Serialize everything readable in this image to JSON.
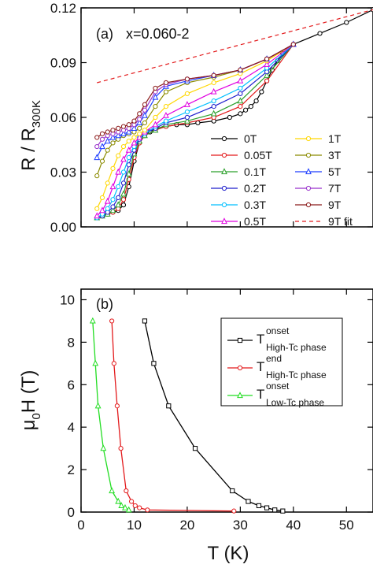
{
  "chart_data": [
    {
      "type": "line",
      "panel_label": "(a)",
      "title": "x=0.060-2",
      "ylabel": "R / R",
      "ylabel_sub": "300K",
      "xlim": [
        0,
        55
      ],
      "ylim": [
        0,
        0.12
      ],
      "yticks": [
        "0.00",
        "0.03",
        "0.06",
        "0.09",
        "0.12"
      ],
      "legend_position": "lower-right",
      "series": [
        {
          "name": "0T",
          "color": "#000000",
          "x": [
            3,
            4,
            5,
            6,
            7,
            8,
            9,
            10,
            11,
            12,
            13,
            14,
            16,
            18,
            20,
            22,
            25,
            28,
            30,
            31,
            32,
            33,
            34,
            35,
            36,
            37,
            38,
            40,
            45,
            50,
            55
          ],
          "y": [
            0.005,
            0.006,
            0.007,
            0.008,
            0.009,
            0.012,
            0.022,
            0.036,
            0.046,
            0.05,
            0.052,
            0.054,
            0.055,
            0.056,
            0.056,
            0.057,
            0.058,
            0.06,
            0.062,
            0.064,
            0.066,
            0.069,
            0.074,
            0.08,
            0.086,
            0.091,
            0.095,
            0.1,
            0.106,
            0.112,
            0.119
          ]
        },
        {
          "name": "0.05T",
          "color": "#e31a1c",
          "x": [
            3,
            4,
            5,
            6,
            7,
            8,
            9,
            10,
            11,
            12,
            14,
            16,
            20,
            25,
            30,
            35,
            40
          ],
          "y": [
            0.005,
            0.006,
            0.007,
            0.008,
            0.01,
            0.015,
            0.026,
            0.038,
            0.046,
            0.05,
            0.053,
            0.055,
            0.057,
            0.06,
            0.066,
            0.08,
            0.1
          ]
        },
        {
          "name": "0.1T",
          "color": "#2ca02c",
          "x": [
            3,
            4,
            5,
            6,
            7,
            8,
            9,
            10,
            11,
            12,
            14,
            16,
            20,
            25,
            30,
            35,
            40
          ],
          "y": [
            0.005,
            0.006,
            0.007,
            0.009,
            0.012,
            0.018,
            0.029,
            0.04,
            0.047,
            0.05,
            0.053,
            0.056,
            0.058,
            0.062,
            0.069,
            0.083,
            0.1
          ]
        },
        {
          "name": "0.2T",
          "color": "#1f1fcc",
          "x": [
            3,
            4,
            5,
            6,
            7,
            8,
            9,
            10,
            11,
            12,
            14,
            16,
            20,
            25,
            30,
            35,
            40
          ],
          "y": [
            0.005,
            0.006,
            0.008,
            0.011,
            0.016,
            0.024,
            0.034,
            0.042,
            0.048,
            0.051,
            0.054,
            0.057,
            0.06,
            0.066,
            0.073,
            0.085,
            0.1
          ]
        },
        {
          "name": "0.3T",
          "color": "#00bfff",
          "x": [
            3,
            4,
            5,
            6,
            7,
            8,
            9,
            10,
            11,
            12,
            14,
            16,
            20,
            25,
            30,
            35,
            40
          ],
          "y": [
            0.005,
            0.007,
            0.01,
            0.015,
            0.022,
            0.03,
            0.038,
            0.044,
            0.049,
            0.051,
            0.055,
            0.058,
            0.063,
            0.069,
            0.076,
            0.087,
            0.1
          ]
        },
        {
          "name": "0.5T",
          "color": "#e000e0",
          "x": [
            3,
            4,
            5,
            6,
            7,
            8,
            9,
            10,
            11,
            12,
            14,
            16,
            20,
            25,
            30,
            35,
            40
          ],
          "y": [
            0.006,
            0.009,
            0.014,
            0.022,
            0.03,
            0.037,
            0.042,
            0.046,
            0.049,
            0.052,
            0.056,
            0.061,
            0.067,
            0.074,
            0.08,
            0.089,
            0.1
          ]
        },
        {
          "name": "1T",
          "color": "#ffd700",
          "x": [
            3,
            4,
            5,
            6,
            7,
            8,
            9,
            10,
            11,
            12,
            14,
            16,
            20,
            25,
            30,
            35,
            40
          ],
          "y": [
            0.01,
            0.016,
            0.024,
            0.032,
            0.039,
            0.044,
            0.047,
            0.049,
            0.051,
            0.053,
            0.06,
            0.066,
            0.073,
            0.079,
            0.084,
            0.091,
            0.1
          ]
        },
        {
          "name": "3T",
          "color": "#8b8b00",
          "x": [
            3,
            4,
            5,
            6,
            7,
            8,
            9,
            10,
            11,
            12,
            14,
            16,
            20,
            25,
            30,
            35,
            40
          ],
          "y": [
            0.028,
            0.036,
            0.042,
            0.046,
            0.048,
            0.05,
            0.051,
            0.052,
            0.054,
            0.057,
            0.066,
            0.074,
            0.079,
            0.082,
            0.086,
            0.092,
            0.1
          ]
        },
        {
          "name": "5T",
          "color": "#1f3fff",
          "x": [
            3,
            4,
            5,
            6,
            7,
            8,
            9,
            10,
            11,
            12,
            14,
            16,
            20,
            25,
            30,
            35,
            40
          ],
          "y": [
            0.038,
            0.044,
            0.047,
            0.049,
            0.05,
            0.051,
            0.052,
            0.054,
            0.057,
            0.061,
            0.071,
            0.077,
            0.08,
            0.083,
            0.086,
            0.092,
            0.1
          ]
        },
        {
          "name": "7T",
          "color": "#9932cc",
          "x": [
            3,
            4,
            5,
            6,
            7,
            8,
            9,
            10,
            11,
            12,
            14,
            16,
            20,
            25,
            30,
            35,
            40
          ],
          "y": [
            0.044,
            0.048,
            0.05,
            0.051,
            0.052,
            0.053,
            0.054,
            0.056,
            0.059,
            0.064,
            0.074,
            0.078,
            0.081,
            0.083,
            0.086,
            0.092,
            0.1
          ]
        },
        {
          "name": "9T",
          "color": "#8b1a1a",
          "x": [
            3,
            4,
            5,
            6,
            7,
            8,
            9,
            10,
            11,
            12,
            14,
            16,
            20,
            25,
            30,
            35,
            40
          ],
          "y": [
            0.049,
            0.051,
            0.052,
            0.053,
            0.054,
            0.055,
            0.056,
            0.058,
            0.062,
            0.067,
            0.076,
            0.079,
            0.081,
            0.083,
            0.086,
            0.092,
            0.1
          ]
        },
        {
          "name": "9T fit",
          "color": "#e31a1c",
          "dashed": true,
          "x": [
            3,
            55
          ],
          "y": [
            0.079,
            0.119
          ]
        }
      ]
    },
    {
      "type": "line",
      "panel_label": "(b)",
      "xlabel": "T (K)",
      "ylabel": "μ",
      "ylabel_sub": "0",
      "ylabel_rest": "H (T)",
      "xlim": [
        0,
        55
      ],
      "ylim": [
        0,
        10.5
      ],
      "xticks": [
        "0",
        "10",
        "20",
        "30",
        "40",
        "50"
      ],
      "yticks": [
        "0",
        "2",
        "4",
        "6",
        "8",
        "10"
      ],
      "legend_position": "top-right",
      "series": [
        {
          "name": "T",
          "sup": "onset",
          "sub": "High-Tc phase",
          "color": "#000000",
          "x": [
            12.0,
            13.7,
            16.5,
            21.5,
            28.5,
            31.5,
            33.5,
            35.0,
            36.5,
            38.0
          ],
          "y": [
            9,
            7,
            5,
            3,
            1,
            0.5,
            0.3,
            0.2,
            0.1,
            0.05
          ]
        },
        {
          "name": "T",
          "sup": "end",
          "sub": "High-Tc phase",
          "color": "#e31a1c",
          "x": [
            5.8,
            6.2,
            6.8,
            7.5,
            8.5,
            9.5,
            10.2,
            11.0,
            12.5,
            28.8
          ],
          "y": [
            9,
            7,
            5,
            3,
            1,
            0.5,
            0.3,
            0.2,
            0.1,
            0.05
          ]
        },
        {
          "name": "T",
          "sup": "onset",
          "sub": "Low-Tc phase",
          "color": "#22dd22",
          "x": [
            2.2,
            2.7,
            3.2,
            4.2,
            5.8,
            7.0,
            7.6,
            8.3,
            9.0
          ],
          "y": [
            9,
            7,
            5,
            3,
            1,
            0.5,
            0.3,
            0.2,
            0.1
          ]
        }
      ]
    }
  ]
}
